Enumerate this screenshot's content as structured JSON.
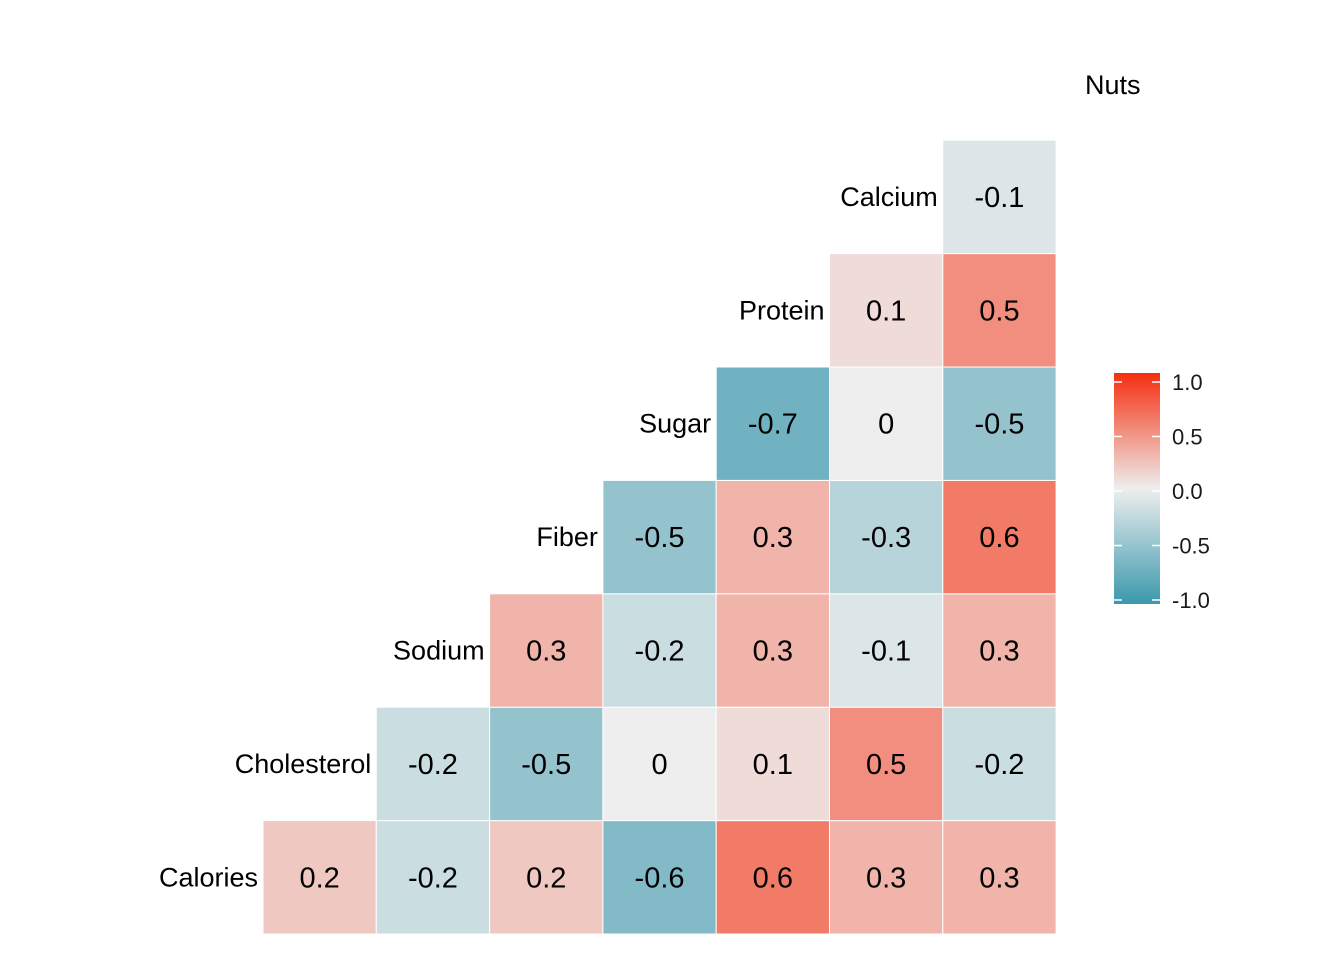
{
  "chart_data": {
    "type": "heatmap",
    "title": "",
    "variables": [
      "Calories",
      "Cholesterol",
      "Sodium",
      "Fiber",
      "Sugar",
      "Protein",
      "Calcium",
      "Nuts"
    ],
    "rows": [
      {
        "label": "Calories",
        "values": [
          0.2,
          -0.2,
          0.2,
          -0.6,
          0.6,
          0.3,
          0.3
        ]
      },
      {
        "label": "Cholesterol",
        "values": [
          -0.2,
          -0.5,
          0,
          0.1,
          0.5,
          -0.2
        ]
      },
      {
        "label": "Sodium",
        "values": [
          0.3,
          -0.2,
          0.3,
          -0.1,
          0.3
        ]
      },
      {
        "label": "Fiber",
        "values": [
          -0.5,
          0.3,
          -0.3,
          0.6
        ]
      },
      {
        "label": "Sugar",
        "values": [
          -0.7,
          0,
          -0.5
        ]
      },
      {
        "label": "Protein",
        "values": [
          0.1,
          0.5
        ]
      },
      {
        "label": "Calcium",
        "values": [
          -0.1
        ]
      }
    ],
    "top_label": "Nuts",
    "legend": {
      "position": "right",
      "min": -1.0,
      "max": 1.0,
      "ticks": [
        "1.0",
        "0.5",
        "0.0",
        "-0.5",
        "-1.0"
      ],
      "colors": {
        "low": "#3a98ad",
        "mid": "#eeeeee",
        "high": "#f52e0f"
      }
    },
    "grid": false
  }
}
